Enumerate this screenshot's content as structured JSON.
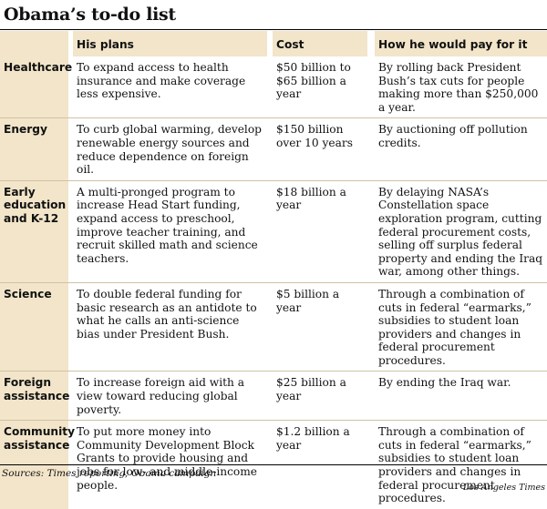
{
  "title": "Obama’s to-do list",
  "headers": {
    "category": "",
    "plans": "His plans",
    "cost": "Cost",
    "pay": "How he would pay for it"
  },
  "rows": [
    {
      "category": "Healthcare",
      "plan": "To expand access to health insurance and make coverage less expensive.",
      "cost": "$50 billion to $65 billion a year",
      "pay": "By rolling back President Bush’s tax cuts for people making more than $250,000 a year."
    },
    {
      "category": "Energy",
      "plan": "To curb global warming, develop renewable energy sources and reduce dependence on foreign oil.",
      "cost": "$150 billion over 10 years",
      "pay": "By auctioning off pollution credits."
    },
    {
      "category": "Early education and K-12",
      "plan": "A multi-pronged program to increase Head Start funding, expand access to preschool, improve teacher training, and recruit skilled math and science teachers.",
      "cost": "$18 billion a year",
      "pay": "By delaying NASA’s Constellation space exploration program, cutting federal procurement costs, selling off surplus federal property and ending the Iraq war, among other things."
    },
    {
      "category": "Science",
      "plan": "To double federal funding for basic research as an antidote to what he calls an anti-science bias under President Bush.",
      "cost": "$5 billion a year",
      "pay": "Through a combination of cuts in federal “earmarks,” subsidies to student loan providers and changes in federal procurement procedures."
    },
    {
      "category": "Foreign assistance",
      "plan": "To increase foreign aid with a view toward reducing global poverty.",
      "cost": "$25 billion a year",
      "pay": "By ending the Iraq war."
    },
    {
      "category": "Community assistance",
      "plan": "To put more money into Community Development Block Grants to provide housing and jobs for low- and middle-income people.",
      "cost": "$1.2 billion a year",
      "pay": "Through a combination of cuts in federal “earmarks,” subsidies to student loan providers and changes in federal procurement procedures."
    }
  ],
  "source": "Sources: Times reporting; Obama campaign",
  "credit": "Los Angeles Times",
  "colors": {
    "tan": "#f2e5c9",
    "rule": "#cfc2a4",
    "text": "#111111"
  }
}
